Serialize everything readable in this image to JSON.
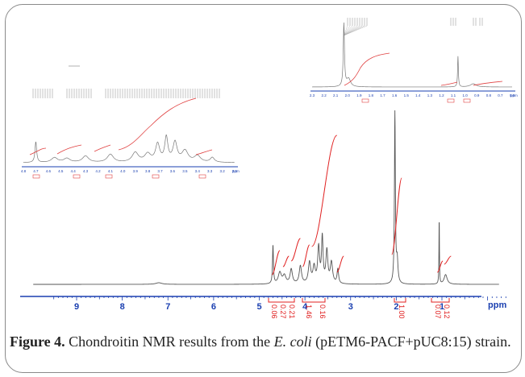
{
  "figure": {
    "caption_label": "Figure 4.",
    "caption_part1": " Chondroitin NMR results from the ",
    "caption_organism": "E. coli",
    "caption_part2": " (pETM6-PACF+pUC8:15) strain."
  },
  "chart_data": {
    "type": "line",
    "title": "",
    "xlabel": "ppm",
    "xlim": [
      10,
      -0.5
    ],
    "x_ticks": [
      "9",
      "8",
      "7",
      "6",
      "5",
      "4",
      "3",
      "2",
      "1"
    ],
    "x_reversed": true,
    "peaks_ppm": [
      4.7,
      4.55,
      4.3,
      4.1,
      3.9,
      3.7,
      3.6,
      3.5,
      3.3,
      2.02,
      1.06,
      0.92
    ],
    "integrals": [
      "0.06",
      "0.27",
      "0.21",
      "1.46",
      "0.16",
      "1.00",
      "0.07",
      "0.12"
    ],
    "insets": [
      {
        "name": "left",
        "x_ticks": [
          "4.8",
          "4.7",
          "4.6",
          "4.5",
          "4.4",
          "4.3",
          "4.2",
          "4.1",
          "4.0",
          "3.9",
          "3.8",
          "3.7",
          "3.6",
          "3.5",
          "3.4",
          "3.3",
          "3.2",
          "3.1"
        ],
        "xlabel": "ppm"
      },
      {
        "name": "right",
        "x_ticks": [
          "2.3",
          "2.2",
          "2.1",
          "2.0",
          "1.9",
          "1.8",
          "1.7",
          "1.6",
          "1.5",
          "1.4",
          "1.3",
          "1.2",
          "1.1",
          "1.0",
          "0.9",
          "0.8",
          "0.7",
          "0.6"
        ],
        "xlabel": "ppm"
      }
    ],
    "line_color": "#555555",
    "integral_color": "#e02020",
    "axis_color": "#1a3fb0"
  }
}
